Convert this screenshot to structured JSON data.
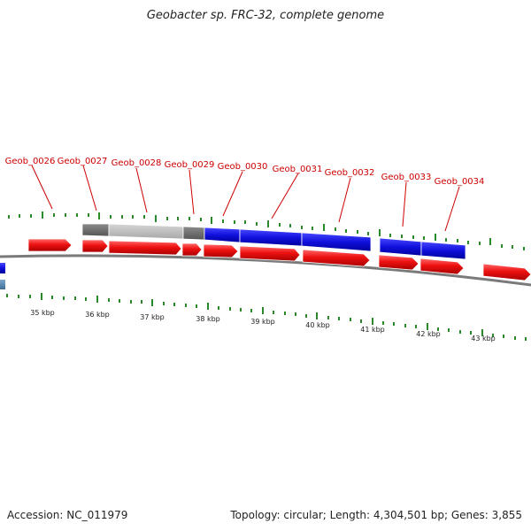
{
  "title": "Geobacter sp. FRC-32, complete genome",
  "accession": "Accession: NC_011979",
  "summary": "Topology: circular; Length: 4,304,501 bp; Genes: 3,855",
  "colors": {
    "gene": "#ee1111",
    "blue_feature": "#1010dd",
    "dark_gray": "#707070",
    "light_gray": "#bdbdbd",
    "backbone": "#7a7a7a",
    "tick": "#2a8a2a",
    "label": "#cc0000"
  },
  "gene_labels": [
    "Geob_0026",
    "Geob_0027",
    "Geob_0028",
    "Geob_0029",
    "Geob_0030",
    "Geob_0031",
    "Geob_0032",
    "Geob_0033",
    "Geob_0034"
  ],
  "kbp_ticks": [
    "35 kbp",
    "36 kbp",
    "37 kbp",
    "38 kbp",
    "39 kbp",
    "40 kbp",
    "41 kbp",
    "42 kbp",
    "43 kbp"
  ]
}
